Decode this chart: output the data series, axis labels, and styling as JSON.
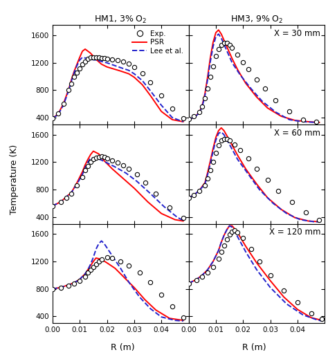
{
  "col_titles": [
    "HM1, 3% O$_2$",
    "HM3, 9% O$_2$"
  ],
  "row_labels": [
    "X = 30 mm",
    "X = 60 mm",
    "X = 120 mm"
  ],
  "ylabel": "Temperature (K)",
  "xlabel": "R (m)",
  "ylim": [
    300,
    1750
  ],
  "xlim": [
    0.0,
    0.05
  ],
  "yticks": [
    400,
    800,
    1200,
    1600
  ],
  "xticks": [
    0.0,
    0.01,
    0.02,
    0.03,
    0.04
  ],
  "xtick_labels": [
    "0.00",
    "0.01",
    "0.02",
    "0.03",
    "0.04"
  ],
  "psr_color": "#ff0000",
  "lee_color": "#2222cc",
  "panels": {
    "HM1_30": {
      "exp_r": [
        0.0,
        0.002,
        0.004,
        0.006,
        0.007,
        0.008,
        0.009,
        0.01,
        0.011,
        0.012,
        0.013,
        0.014,
        0.015,
        0.016,
        0.017,
        0.018,
        0.019,
        0.02,
        0.022,
        0.024,
        0.026,
        0.028,
        0.03,
        0.033,
        0.036,
        0.04,
        0.044,
        0.048
      ],
      "exp_T": [
        390,
        460,
        600,
        800,
        900,
        1000,
        1060,
        1120,
        1180,
        1220,
        1260,
        1280,
        1280,
        1280,
        1275,
        1270,
        1265,
        1260,
        1250,
        1240,
        1220,
        1190,
        1140,
        1050,
        920,
        720,
        530,
        390
      ],
      "psr_r": [
        0.0,
        0.002,
        0.004,
        0.006,
        0.007,
        0.008,
        0.009,
        0.01,
        0.011,
        0.012,
        0.014,
        0.016,
        0.018,
        0.02,
        0.025,
        0.028,
        0.03,
        0.033,
        0.036,
        0.04,
        0.044,
        0.048
      ],
      "psr_T": [
        390,
        450,
        600,
        820,
        960,
        1080,
        1180,
        1280,
        1370,
        1400,
        1340,
        1250,
        1180,
        1140,
        1080,
        1040,
        990,
        880,
        720,
        490,
        370,
        340
      ],
      "lee_r": [
        0.0,
        0.002,
        0.004,
        0.006,
        0.007,
        0.008,
        0.009,
        0.01,
        0.011,
        0.012,
        0.014,
        0.016,
        0.018,
        0.02,
        0.025,
        0.028,
        0.03,
        0.033,
        0.036,
        0.04,
        0.044,
        0.048
      ],
      "lee_T": [
        390,
        440,
        580,
        800,
        940,
        1060,
        1160,
        1240,
        1280,
        1270,
        1250,
        1240,
        1220,
        1200,
        1130,
        1090,
        1040,
        940,
        790,
        580,
        400,
        340
      ]
    },
    "HM1_60": {
      "exp_r": [
        0.0,
        0.003,
        0.005,
        0.007,
        0.009,
        0.011,
        0.012,
        0.013,
        0.014,
        0.015,
        0.016,
        0.017,
        0.018,
        0.019,
        0.02,
        0.022,
        0.024,
        0.026,
        0.028,
        0.031,
        0.034,
        0.038,
        0.043,
        0.048
      ],
      "exp_T": [
        560,
        620,
        680,
        740,
        860,
        980,
        1080,
        1140,
        1200,
        1240,
        1260,
        1270,
        1280,
        1275,
        1250,
        1220,
        1190,
        1150,
        1100,
        1020,
        900,
        740,
        540,
        390
      ],
      "psr_r": [
        0.0,
        0.003,
        0.005,
        0.007,
        0.009,
        0.011,
        0.012,
        0.013,
        0.014,
        0.015,
        0.017,
        0.019,
        0.022,
        0.026,
        0.03,
        0.035,
        0.04,
        0.045,
        0.048
      ],
      "psr_T": [
        560,
        620,
        690,
        760,
        900,
        1060,
        1160,
        1240,
        1310,
        1360,
        1320,
        1220,
        1100,
        960,
        820,
        620,
        450,
        360,
        340
      ],
      "lee_r": [
        0.0,
        0.003,
        0.005,
        0.007,
        0.009,
        0.011,
        0.012,
        0.013,
        0.014,
        0.016,
        0.018,
        0.02,
        0.023,
        0.027,
        0.031,
        0.036,
        0.041,
        0.046,
        0.048
      ],
      "lee_T": [
        560,
        620,
        690,
        760,
        880,
        1020,
        1120,
        1200,
        1260,
        1260,
        1230,
        1190,
        1130,
        1040,
        920,
        740,
        550,
        390,
        350
      ]
    },
    "HM1_120": {
      "exp_r": [
        0.0,
        0.003,
        0.006,
        0.008,
        0.01,
        0.012,
        0.013,
        0.014,
        0.015,
        0.016,
        0.017,
        0.018,
        0.02,
        0.022,
        0.025,
        0.028,
        0.032,
        0.036,
        0.04,
        0.044,
        0.048
      ],
      "exp_T": [
        800,
        820,
        850,
        880,
        920,
        980,
        1040,
        1080,
        1120,
        1160,
        1200,
        1230,
        1260,
        1250,
        1200,
        1140,
        1040,
        900,
        720,
        540,
        380
      ],
      "psr_r": [
        0.0,
        0.003,
        0.006,
        0.008,
        0.01,
        0.012,
        0.013,
        0.014,
        0.015,
        0.016,
        0.018,
        0.02,
        0.023,
        0.026,
        0.03,
        0.034,
        0.038,
        0.043,
        0.048
      ],
      "psr_T": [
        800,
        820,
        860,
        890,
        940,
        1020,
        1080,
        1140,
        1200,
        1250,
        1230,
        1180,
        1100,
        980,
        820,
        640,
        490,
        370,
        340
      ],
      "lee_r": [
        0.0,
        0.003,
        0.006,
        0.008,
        0.01,
        0.012,
        0.013,
        0.014,
        0.015,
        0.016,
        0.017,
        0.018,
        0.019,
        0.02,
        0.022,
        0.025,
        0.028,
        0.032,
        0.036,
        0.04,
        0.045,
        0.048
      ],
      "lee_T": [
        800,
        820,
        860,
        890,
        940,
        1020,
        1080,
        1160,
        1260,
        1380,
        1460,
        1500,
        1460,
        1400,
        1280,
        1100,
        900,
        680,
        510,
        390,
        340,
        330
      ]
    },
    "HM3_30": {
      "exp_r": [
        0.0,
        0.002,
        0.004,
        0.005,
        0.006,
        0.007,
        0.008,
        0.009,
        0.01,
        0.011,
        0.012,
        0.013,
        0.014,
        0.015,
        0.016,
        0.018,
        0.02,
        0.022,
        0.025,
        0.028,
        0.032,
        0.037,
        0.042,
        0.047
      ],
      "exp_T": [
        380,
        420,
        480,
        560,
        680,
        820,
        1000,
        1150,
        1300,
        1400,
        1460,
        1490,
        1490,
        1460,
        1420,
        1320,
        1210,
        1110,
        960,
        820,
        650,
        490,
        370,
        340
      ],
      "psr_r": [
        0.0,
        0.002,
        0.004,
        0.005,
        0.006,
        0.007,
        0.008,
        0.009,
        0.01,
        0.011,
        0.012,
        0.014,
        0.016,
        0.018,
        0.021,
        0.025,
        0.029,
        0.034,
        0.039,
        0.044,
        0.048
      ],
      "psr_T": [
        380,
        400,
        480,
        580,
        750,
        1000,
        1280,
        1500,
        1640,
        1680,
        1620,
        1440,
        1260,
        1100,
        900,
        700,
        540,
        420,
        360,
        340,
        330
      ],
      "lee_r": [
        0.0,
        0.002,
        0.004,
        0.005,
        0.006,
        0.007,
        0.008,
        0.009,
        0.01,
        0.011,
        0.012,
        0.014,
        0.016,
        0.019,
        0.023,
        0.027,
        0.032,
        0.037,
        0.042,
        0.047
      ],
      "lee_T": [
        380,
        400,
        470,
        560,
        720,
        960,
        1220,
        1440,
        1580,
        1620,
        1560,
        1380,
        1200,
        1020,
        820,
        640,
        480,
        370,
        340,
        330
      ]
    },
    "HM3_60": {
      "exp_r": [
        0.0,
        0.002,
        0.004,
        0.006,
        0.007,
        0.008,
        0.009,
        0.01,
        0.011,
        0.012,
        0.013,
        0.014,
        0.015,
        0.017,
        0.019,
        0.022,
        0.025,
        0.029,
        0.033,
        0.038,
        0.043,
        0.048
      ],
      "exp_T": [
        680,
        720,
        780,
        860,
        960,
        1080,
        1200,
        1340,
        1450,
        1520,
        1540,
        1540,
        1520,
        1460,
        1380,
        1250,
        1100,
        940,
        780,
        620,
        470,
        360
      ],
      "psr_r": [
        0.0,
        0.002,
        0.004,
        0.006,
        0.007,
        0.008,
        0.009,
        0.01,
        0.011,
        0.012,
        0.013,
        0.015,
        0.018,
        0.021,
        0.025,
        0.029,
        0.034,
        0.039,
        0.044,
        0.048
      ],
      "psr_T": [
        680,
        720,
        790,
        900,
        1050,
        1220,
        1400,
        1560,
        1660,
        1700,
        1660,
        1520,
        1300,
        1100,
        880,
        680,
        510,
        390,
        340,
        330
      ],
      "lee_r": [
        0.0,
        0.002,
        0.004,
        0.006,
        0.007,
        0.008,
        0.009,
        0.01,
        0.011,
        0.012,
        0.013,
        0.015,
        0.018,
        0.022,
        0.026,
        0.031,
        0.036,
        0.041,
        0.046,
        0.048
      ],
      "lee_T": [
        680,
        720,
        790,
        880,
        1020,
        1180,
        1360,
        1520,
        1620,
        1640,
        1600,
        1460,
        1240,
        1020,
        800,
        600,
        450,
        360,
        330,
        330
      ]
    },
    "HM3_120": {
      "exp_r": [
        0.0,
        0.003,
        0.005,
        0.007,
        0.009,
        0.011,
        0.012,
        0.013,
        0.014,
        0.015,
        0.016,
        0.017,
        0.018,
        0.02,
        0.023,
        0.026,
        0.03,
        0.035,
        0.04,
        0.045,
        0.049
      ],
      "exp_T": [
        880,
        930,
        980,
        1040,
        1120,
        1240,
        1340,
        1430,
        1520,
        1590,
        1630,
        1650,
        1620,
        1540,
        1380,
        1200,
        1000,
        780,
        600,
        440,
        360
      ],
      "psr_r": [
        0.0,
        0.003,
        0.005,
        0.007,
        0.009,
        0.011,
        0.012,
        0.013,
        0.014,
        0.015,
        0.016,
        0.018,
        0.021,
        0.025,
        0.03,
        0.035,
        0.04,
        0.045,
        0.049
      ],
      "psr_T": [
        880,
        940,
        1000,
        1080,
        1200,
        1360,
        1480,
        1580,
        1660,
        1720,
        1720,
        1620,
        1420,
        1180,
        920,
        680,
        500,
        380,
        340
      ],
      "lee_r": [
        0.0,
        0.003,
        0.005,
        0.007,
        0.009,
        0.011,
        0.012,
        0.013,
        0.014,
        0.015,
        0.016,
        0.018,
        0.021,
        0.025,
        0.03,
        0.036,
        0.042,
        0.047,
        0.049
      ],
      "lee_T": [
        880,
        940,
        1000,
        1080,
        1200,
        1360,
        1480,
        1580,
        1660,
        1720,
        1700,
        1560,
        1340,
        1080,
        820,
        580,
        420,
        350,
        330
      ]
    }
  }
}
